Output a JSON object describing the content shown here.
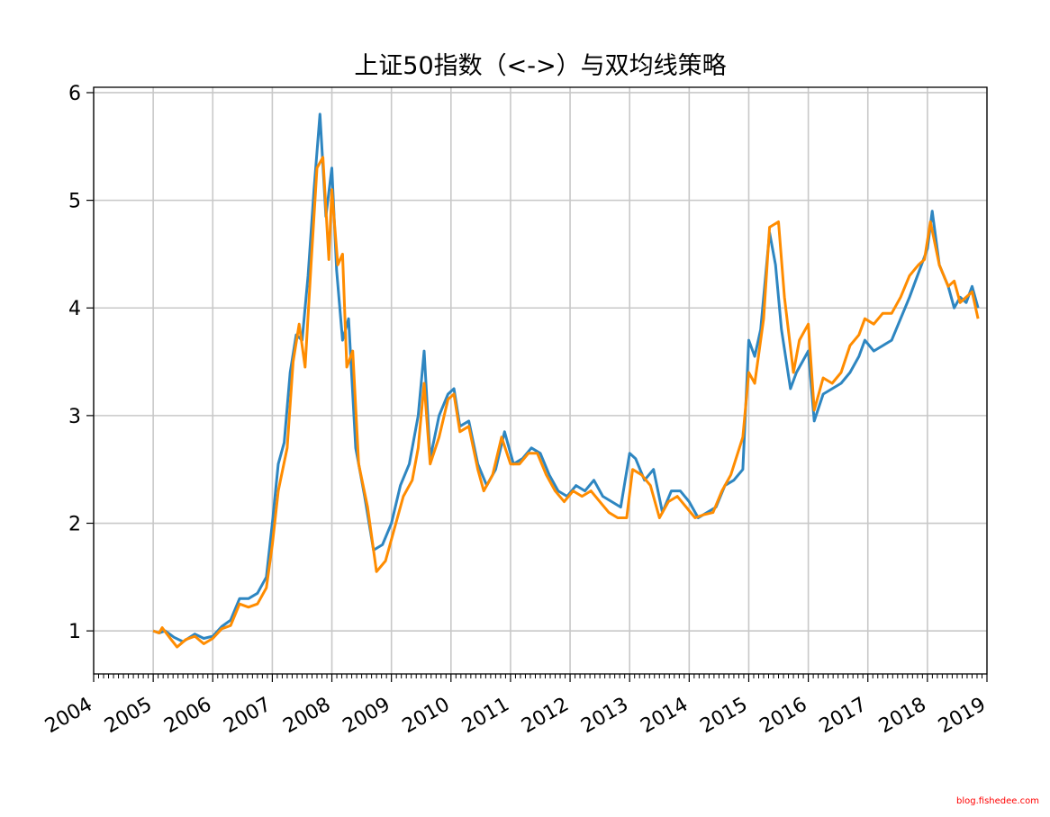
{
  "watermark": "blog.fishedee.com",
  "chart_data": {
    "type": "line",
    "title": "上证50指数（<->）与双均线策略",
    "xlabel": "",
    "ylabel": "",
    "xlim": [
      2004,
      2019
    ],
    "ylim": [
      0.6,
      6.05
    ],
    "grid": true,
    "x_ticks": [
      "2004",
      "2005",
      "2006",
      "2007",
      "2008",
      "2009",
      "2010",
      "2011",
      "2012",
      "2013",
      "2014",
      "2015",
      "2016",
      "2017",
      "2018",
      "2019"
    ],
    "y_ticks": [
      1,
      2,
      3,
      4,
      5,
      6
    ],
    "series": [
      {
        "color": "#2e86c1",
        "points": [
          [
            2005.0,
            1.0
          ],
          [
            2005.1,
            0.98
          ],
          [
            2005.2,
            1.0
          ],
          [
            2005.35,
            0.94
          ],
          [
            2005.5,
            0.9
          ],
          [
            2005.7,
            0.97
          ],
          [
            2005.85,
            0.93
          ],
          [
            2006.0,
            0.95
          ],
          [
            2006.15,
            1.04
          ],
          [
            2006.3,
            1.1
          ],
          [
            2006.45,
            1.3
          ],
          [
            2006.6,
            1.3
          ],
          [
            2006.75,
            1.35
          ],
          [
            2006.9,
            1.5
          ],
          [
            2007.0,
            2.0
          ],
          [
            2007.1,
            2.55
          ],
          [
            2007.2,
            2.75
          ],
          [
            2007.3,
            3.4
          ],
          [
            2007.4,
            3.75
          ],
          [
            2007.5,
            3.7
          ],
          [
            2007.6,
            4.3
          ],
          [
            2007.7,
            5.1
          ],
          [
            2007.8,
            5.8
          ],
          [
            2007.9,
            4.85
          ],
          [
            2008.0,
            5.3
          ],
          [
            2008.08,
            4.35
          ],
          [
            2008.18,
            3.7
          ],
          [
            2008.28,
            3.9
          ],
          [
            2008.4,
            2.7
          ],
          [
            2008.55,
            2.25
          ],
          [
            2008.7,
            1.75
          ],
          [
            2008.85,
            1.8
          ],
          [
            2009.0,
            2.0
          ],
          [
            2009.15,
            2.35
          ],
          [
            2009.3,
            2.55
          ],
          [
            2009.45,
            3.0
          ],
          [
            2009.55,
            3.6
          ],
          [
            2009.65,
            2.6
          ],
          [
            2009.8,
            3.0
          ],
          [
            2009.95,
            3.2
          ],
          [
            2010.05,
            3.25
          ],
          [
            2010.15,
            2.9
          ],
          [
            2010.3,
            2.95
          ],
          [
            2010.45,
            2.55
          ],
          [
            2010.6,
            2.35
          ],
          [
            2010.75,
            2.5
          ],
          [
            2010.9,
            2.85
          ],
          [
            2011.05,
            2.55
          ],
          [
            2011.2,
            2.6
          ],
          [
            2011.35,
            2.7
          ],
          [
            2011.5,
            2.65
          ],
          [
            2011.65,
            2.45
          ],
          [
            2011.8,
            2.3
          ],
          [
            2011.95,
            2.25
          ],
          [
            2012.1,
            2.35
          ],
          [
            2012.25,
            2.3
          ],
          [
            2012.4,
            2.4
          ],
          [
            2012.55,
            2.25
          ],
          [
            2012.7,
            2.2
          ],
          [
            2012.85,
            2.15
          ],
          [
            2013.0,
            2.65
          ],
          [
            2013.1,
            2.6
          ],
          [
            2013.25,
            2.4
          ],
          [
            2013.4,
            2.5
          ],
          [
            2013.55,
            2.1
          ],
          [
            2013.7,
            2.3
          ],
          [
            2013.85,
            2.3
          ],
          [
            2014.0,
            2.2
          ],
          [
            2014.15,
            2.05
          ],
          [
            2014.3,
            2.1
          ],
          [
            2014.45,
            2.15
          ],
          [
            2014.6,
            2.35
          ],
          [
            2014.75,
            2.4
          ],
          [
            2014.9,
            2.5
          ],
          [
            2015.0,
            3.7
          ],
          [
            2015.1,
            3.55
          ],
          [
            2015.2,
            3.8
          ],
          [
            2015.35,
            4.7
          ],
          [
            2015.45,
            4.4
          ],
          [
            2015.55,
            3.8
          ],
          [
            2015.7,
            3.25
          ],
          [
            2015.8,
            3.4
          ],
          [
            2015.9,
            3.5
          ],
          [
            2016.0,
            3.6
          ],
          [
            2016.1,
            2.95
          ],
          [
            2016.25,
            3.2
          ],
          [
            2016.4,
            3.25
          ],
          [
            2016.55,
            3.3
          ],
          [
            2016.7,
            3.4
          ],
          [
            2016.85,
            3.55
          ],
          [
            2016.95,
            3.7
          ],
          [
            2017.1,
            3.6
          ],
          [
            2017.25,
            3.65
          ],
          [
            2017.4,
            3.7
          ],
          [
            2017.55,
            3.9
          ],
          [
            2017.7,
            4.1
          ],
          [
            2017.8,
            4.25
          ],
          [
            2017.9,
            4.4
          ],
          [
            2018.0,
            4.55
          ],
          [
            2018.08,
            4.9
          ],
          [
            2018.2,
            4.4
          ],
          [
            2018.35,
            4.2
          ],
          [
            2018.45,
            4.0
          ],
          [
            2018.55,
            4.1
          ],
          [
            2018.65,
            4.05
          ],
          [
            2018.75,
            4.2
          ],
          [
            2018.85,
            4.0
          ]
        ]
      },
      {
        "color": "#ff8c00",
        "points": [
          [
            2005.0,
            1.0
          ],
          [
            2005.1,
            0.98
          ],
          [
            2005.15,
            1.03
          ],
          [
            2005.3,
            0.92
          ],
          [
            2005.4,
            0.85
          ],
          [
            2005.55,
            0.92
          ],
          [
            2005.7,
            0.95
          ],
          [
            2005.85,
            0.88
          ],
          [
            2006.0,
            0.93
          ],
          [
            2006.15,
            1.02
          ],
          [
            2006.3,
            1.05
          ],
          [
            2006.45,
            1.25
          ],
          [
            2006.6,
            1.22
          ],
          [
            2006.75,
            1.25
          ],
          [
            2006.9,
            1.4
          ],
          [
            2007.0,
            1.8
          ],
          [
            2007.1,
            2.3
          ],
          [
            2007.25,
            2.7
          ],
          [
            2007.35,
            3.5
          ],
          [
            2007.45,
            3.85
          ],
          [
            2007.55,
            3.45
          ],
          [
            2007.65,
            4.4
          ],
          [
            2007.75,
            5.3
          ],
          [
            2007.85,
            5.4
          ],
          [
            2007.95,
            4.45
          ],
          [
            2008.0,
            5.1
          ],
          [
            2008.1,
            4.4
          ],
          [
            2008.18,
            4.5
          ],
          [
            2008.25,
            3.45
          ],
          [
            2008.35,
            3.6
          ],
          [
            2008.45,
            2.55
          ],
          [
            2008.6,
            2.15
          ],
          [
            2008.75,
            1.55
          ],
          [
            2008.9,
            1.65
          ],
          [
            2009.05,
            1.95
          ],
          [
            2009.2,
            2.25
          ],
          [
            2009.35,
            2.4
          ],
          [
            2009.45,
            2.7
          ],
          [
            2009.55,
            3.3
          ],
          [
            2009.65,
            2.55
          ],
          [
            2009.8,
            2.8
          ],
          [
            2009.95,
            3.15
          ],
          [
            2010.05,
            3.2
          ],
          [
            2010.15,
            2.85
          ],
          [
            2010.3,
            2.9
          ],
          [
            2010.45,
            2.5
          ],
          [
            2010.55,
            2.3
          ],
          [
            2010.7,
            2.45
          ],
          [
            2010.85,
            2.8
          ],
          [
            2011.0,
            2.55
          ],
          [
            2011.15,
            2.55
          ],
          [
            2011.3,
            2.65
          ],
          [
            2011.45,
            2.65
          ],
          [
            2011.6,
            2.45
          ],
          [
            2011.75,
            2.3
          ],
          [
            2011.9,
            2.2
          ],
          [
            2012.05,
            2.3
          ],
          [
            2012.2,
            2.25
          ],
          [
            2012.35,
            2.3
          ],
          [
            2012.5,
            2.2
          ],
          [
            2012.65,
            2.1
          ],
          [
            2012.8,
            2.05
          ],
          [
            2012.95,
            2.05
          ],
          [
            2013.05,
            2.5
          ],
          [
            2013.2,
            2.45
          ],
          [
            2013.35,
            2.35
          ],
          [
            2013.5,
            2.05
          ],
          [
            2013.65,
            2.2
          ],
          [
            2013.8,
            2.25
          ],
          [
            2013.95,
            2.15
          ],
          [
            2014.1,
            2.05
          ],
          [
            2014.25,
            2.08
          ],
          [
            2014.4,
            2.1
          ],
          [
            2014.55,
            2.3
          ],
          [
            2014.7,
            2.45
          ],
          [
            2014.9,
            2.8
          ],
          [
            2015.0,
            3.4
          ],
          [
            2015.1,
            3.3
          ],
          [
            2015.25,
            3.9
          ],
          [
            2015.35,
            4.75
          ],
          [
            2015.5,
            4.8
          ],
          [
            2015.6,
            4.1
          ],
          [
            2015.75,
            3.4
          ],
          [
            2015.85,
            3.7
          ],
          [
            2016.0,
            3.85
          ],
          [
            2016.1,
            3.05
          ],
          [
            2016.25,
            3.35
          ],
          [
            2016.4,
            3.3
          ],
          [
            2016.55,
            3.4
          ],
          [
            2016.7,
            3.65
          ],
          [
            2016.85,
            3.75
          ],
          [
            2016.95,
            3.9
          ],
          [
            2017.1,
            3.85
          ],
          [
            2017.25,
            3.95
          ],
          [
            2017.4,
            3.95
          ],
          [
            2017.55,
            4.1
          ],
          [
            2017.7,
            4.3
          ],
          [
            2017.85,
            4.4
          ],
          [
            2017.95,
            4.45
          ],
          [
            2018.05,
            4.8
          ],
          [
            2018.2,
            4.4
          ],
          [
            2018.35,
            4.2
          ],
          [
            2018.45,
            4.25
          ],
          [
            2018.55,
            4.05
          ],
          [
            2018.65,
            4.1
          ],
          [
            2018.75,
            4.15
          ],
          [
            2018.85,
            3.9
          ]
        ]
      }
    ]
  }
}
